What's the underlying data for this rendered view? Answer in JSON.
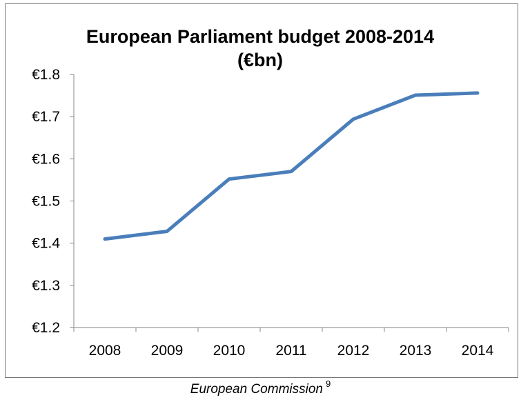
{
  "chart_data": {
    "type": "line",
    "title_lines": [
      "European Parliament budget 2008-2014",
      "(€bn)"
    ],
    "categories": [
      "2008",
      "2009",
      "2010",
      "2011",
      "2012",
      "2013",
      "2014"
    ],
    "series": [
      {
        "values": [
          1.41,
          1.428,
          1.552,
          1.57,
          1.694,
          1.751,
          1.756
        ]
      }
    ],
    "y_tick_labels": [
      "€1.2",
      "€1.3",
      "€1.4",
      "€1.5",
      "€1.6",
      "€1.7",
      "€1.8"
    ],
    "ylim": [
      1.2,
      1.8
    ],
    "y_step": 0.1,
    "grid": false,
    "legend": "none",
    "line_color": "#4A7EBB"
  },
  "caption": {
    "source": "European Commission",
    "footnote": "9"
  }
}
